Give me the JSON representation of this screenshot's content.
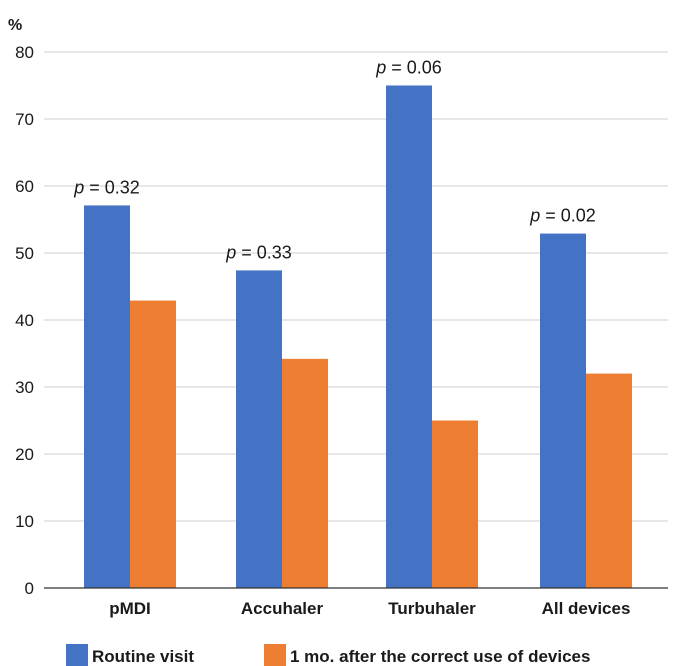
{
  "chart_data": {
    "type": "bar",
    "ylabel": "%",
    "ylim": [
      0,
      80
    ],
    "yticks": [
      0,
      10,
      20,
      30,
      40,
      50,
      60,
      70,
      80
    ],
    "grid": true,
    "legend_position": "bottom",
    "categories": [
      "pMDI",
      "Accuhaler",
      "Turbuhaler",
      "All devices"
    ],
    "series": [
      {
        "name": "Routine visit",
        "color": "#4472C4",
        "values": [
          57.1,
          47.4,
          75.0,
          52.9
        ]
      },
      {
        "name": "1 mo. after the correct use of devices",
        "color": "#ED7D31",
        "values": [
          42.9,
          34.2,
          25.0,
          32.0
        ]
      }
    ],
    "annotations": [
      {
        "category": "pMDI",
        "label": "p",
        "text": " = 0.32"
      },
      {
        "category": "Accuhaler",
        "label": "p",
        "text": " = 0.33"
      },
      {
        "category": "Turbuhaler",
        "label": "p",
        "text": " = 0.06"
      },
      {
        "category": "All devices",
        "label": "p",
        "text": " = 0.02"
      }
    ]
  }
}
